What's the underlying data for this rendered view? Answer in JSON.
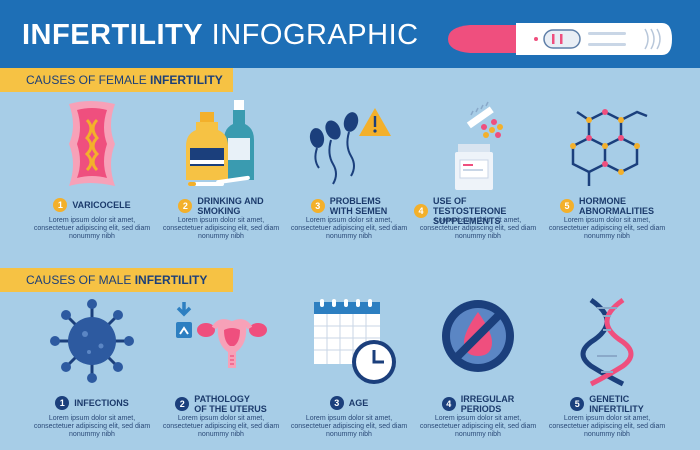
{
  "header": {
    "title_bold": "INFERTILITY",
    "title_light": "INFOGRAPHIC"
  },
  "female_section": {
    "label_prefix": "CAUSES OF FEMALE",
    "label_strong": "INFERTILITY",
    "items": [
      {
        "number": "1",
        "label": "VARICOCELE",
        "desc": "Lorem ipsum dolor sit amet, consectetuer adipiscing elit, sed diam nonummy nibh",
        "icon": "varicocele-icon"
      },
      {
        "number": "2",
        "label": "DRINKING AND\nSMOKING",
        "desc": "Lorem ipsum dolor sit amet, consectetuer adipiscing elit, sed diam nonummy nibh",
        "icon": "bottles-cigarettes-icon"
      },
      {
        "number": "3",
        "label": "PROBLEMS\nWITH SEMEN",
        "desc": "Lorem ipsum dolor sit amet, consectetuer adipiscing elit, sed diam nonummy nibh",
        "icon": "sperm-warning-icon"
      },
      {
        "number": "4",
        "label": "USE OF TESTOSTERONE\nSUPPLEMENTS",
        "desc": "Lorem ipsum dolor sit amet, consectetuer adipiscing elit, sed diam nonummy nibh",
        "icon": "pill-bottle-icon"
      },
      {
        "number": "5",
        "label": "HORMONE\nABNORMALITIES",
        "desc": "Lorem ipsum dolor sit amet, consectetuer adipiscing elit, sed diam nonummy nibh",
        "icon": "molecule-icon"
      }
    ]
  },
  "male_section": {
    "label_prefix": "CAUSES OF MALE",
    "label_strong": "INFERTILITY",
    "items": [
      {
        "number": "1",
        "label": "INFECTIONS",
        "desc": "Lorem ipsum dolor sit amet, consectetuer adipiscing elit, sed diam nonummy nibh",
        "icon": "virus-icon"
      },
      {
        "number": "2",
        "label": "PATHOLOGY\nOF THE UTERUS",
        "desc": "Lorem ipsum dolor sit amet, consectetuer adipiscing elit, sed diam nonummy nibh",
        "icon": "uterus-icon"
      },
      {
        "number": "3",
        "label": "AGE",
        "desc": "Lorem ipsum dolor sit amet, consectetuer adipiscing elit, sed diam nonummy nibh",
        "icon": "calendar-clock-icon"
      },
      {
        "number": "4",
        "label": "IRREGULAR\nPERIODS",
        "desc": "Lorem ipsum dolor sit amet, consectetuer adipiscing elit, sed diam nonummy nibh",
        "icon": "no-blood-drop-icon"
      },
      {
        "number": "5",
        "label": "GENETIC\nINFERTILITY",
        "desc": "Lorem ipsum dolor sit amet, consectetuer adipiscing elit, sed diam nonummy nibh",
        "icon": "dna-icon"
      }
    ]
  },
  "colors": {
    "background": "#a7cde7",
    "header": "#1e6fb6",
    "section_bar": "#f6c244",
    "female_badge": "#f3b02b",
    "male_badge": "#1b3f7c",
    "accent_pink": "#ef4f7e",
    "navy": "#1b3f7c"
  }
}
